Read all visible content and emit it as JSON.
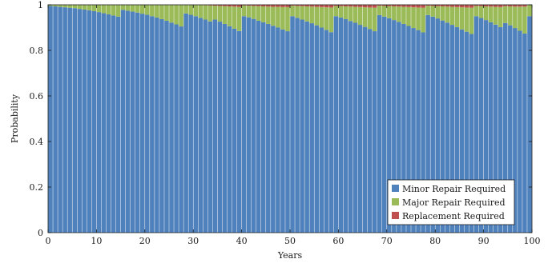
{
  "chart_data": {
    "type": "bar",
    "stacked": true,
    "xlabel": "Years",
    "ylabel": "Probability",
    "xlim": [
      0,
      100
    ],
    "ylim": [
      0,
      1
    ],
    "xticks": [
      0,
      10,
      20,
      30,
      40,
      50,
      60,
      70,
      80,
      90,
      100
    ],
    "yticks": [
      0,
      0.2,
      0.4,
      0.6,
      0.8,
      1
    ],
    "ytick_labels": [
      "0",
      "0.2",
      "0.4",
      "0.6",
      "0.8",
      "1"
    ],
    "legend_position": "bottom-right",
    "grid": false,
    "x": [
      1,
      2,
      3,
      4,
      5,
      6,
      7,
      8,
      9,
      10,
      11,
      12,
      13,
      14,
      15,
      16,
      17,
      18,
      19,
      20,
      21,
      22,
      23,
      24,
      25,
      26,
      27,
      28,
      29,
      30,
      31,
      32,
      33,
      34,
      35,
      36,
      37,
      38,
      39,
      40,
      41,
      42,
      43,
      44,
      45,
      46,
      47,
      48,
      49,
      50,
      51,
      52,
      53,
      54,
      55,
      56,
      57,
      58,
      59,
      60,
      61,
      62,
      63,
      64,
      65,
      66,
      67,
      68,
      69,
      70,
      71,
      72,
      73,
      74,
      75,
      76,
      77,
      78,
      79,
      80,
      81,
      82,
      83,
      84,
      85,
      86,
      87,
      88,
      89,
      90,
      91,
      92,
      93,
      94,
      95,
      96,
      97,
      98,
      99,
      100
    ],
    "series": [
      {
        "name": "Minor Repair Required",
        "color": "#4f81bd",
        "values": [
          0.995,
          0.993,
          0.991,
          0.989,
          0.987,
          0.985,
          0.982,
          0.979,
          0.976,
          0.972,
          0.968,
          0.963,
          0.958,
          0.953,
          0.948,
          0.978,
          0.974,
          0.97,
          0.966,
          0.961,
          0.956,
          0.95,
          0.944,
          0.937,
          0.93,
          0.922,
          0.914,
          0.905,
          0.962,
          0.956,
          0.95,
          0.943,
          0.935,
          0.927,
          0.935,
          0.926,
          0.916,
          0.906,
          0.895,
          0.885,
          0.95,
          0.945,
          0.938,
          0.93,
          0.923,
          0.916,
          0.908,
          0.9,
          0.892,
          0.884,
          0.95,
          0.943,
          0.935,
          0.927,
          0.919,
          0.91,
          0.9,
          0.89,
          0.88,
          0.95,
          0.944,
          0.937,
          0.929,
          0.921,
          0.912,
          0.903,
          0.894,
          0.884,
          0.955,
          0.948,
          0.941,
          0.933,
          0.925,
          0.916,
          0.907,
          0.898,
          0.889,
          0.879,
          0.955,
          0.948,
          0.94,
          0.931,
          0.922,
          0.912,
          0.902,
          0.892,
          0.882,
          0.872,
          0.95,
          0.942,
          0.933,
          0.923,
          0.913,
          0.902,
          0.92,
          0.91,
          0.898,
          0.886,
          0.874,
          0.95
        ],
        "note_on_last": "final bar (100) mostly minor"
      },
      {
        "name": "Major Repair Required",
        "color": "#9bbb59",
        "values": [
          0.005,
          0.007,
          0.009,
          0.011,
          0.013,
          0.015,
          0.018,
          0.021,
          0.024,
          0.028,
          0.032,
          0.037,
          0.042,
          0.047,
          0.052,
          0.022,
          0.026,
          0.03,
          0.034,
          0.039,
          0.044,
          0.05,
          0.056,
          0.063,
          0.07,
          0.078,
          0.086,
          0.095,
          0.038,
          0.044,
          0.05,
          0.056,
          0.063,
          0.07,
          0.061,
          0.069,
          0.078,
          0.087,
          0.097,
          0.106,
          0.047,
          0.051,
          0.057,
          0.064,
          0.07,
          0.076,
          0.083,
          0.091,
          0.098,
          0.106,
          0.046,
          0.052,
          0.059,
          0.066,
          0.073,
          0.081,
          0.09,
          0.099,
          0.108,
          0.045,
          0.05,
          0.056,
          0.063,
          0.07,
          0.078,
          0.086,
          0.094,
          0.103,
          0.041,
          0.047,
          0.053,
          0.06,
          0.067,
          0.075,
          0.083,
          0.091,
          0.099,
          0.108,
          0.041,
          0.047,
          0.054,
          0.062,
          0.07,
          0.079,
          0.088,
          0.097,
          0.106,
          0.115,
          0.045,
          0.052,
          0.06,
          0.069,
          0.078,
          0.088,
          0.074,
          0.083,
          0.094,
          0.106,
          0.118,
          0.05
        ]
      },
      {
        "name": "Replacement Required",
        "color": "#c0504d",
        "values": [
          0,
          0,
          0,
          0,
          0,
          0,
          0,
          0,
          0,
          0,
          0,
          0,
          0,
          0,
          0,
          0,
          0,
          0,
          0,
          0,
          0,
          0,
          0,
          0,
          0,
          0,
          0,
          0,
          0,
          0,
          0,
          0.001,
          0.002,
          0.003,
          0.004,
          0.005,
          0.006,
          0.007,
          0.008,
          0.009,
          0.003,
          0.004,
          0.005,
          0.006,
          0.007,
          0.008,
          0.009,
          0.009,
          0.01,
          0.01,
          0.004,
          0.005,
          0.006,
          0.007,
          0.008,
          0.009,
          0.01,
          0.011,
          0.012,
          0.005,
          0.006,
          0.007,
          0.008,
          0.009,
          0.01,
          0.011,
          0.012,
          0.013,
          0.004,
          0.005,
          0.006,
          0.007,
          0.008,
          0.009,
          0.01,
          0.011,
          0.012,
          0.013,
          0.004,
          0.005,
          0.006,
          0.007,
          0.008,
          0.009,
          0.01,
          0.011,
          0.012,
          0.013,
          0.005,
          0.006,
          0.007,
          0.008,
          0.009,
          0.01,
          0.006,
          0.007,
          0.008,
          0.008,
          0.008,
          0
        ]
      }
    ]
  }
}
